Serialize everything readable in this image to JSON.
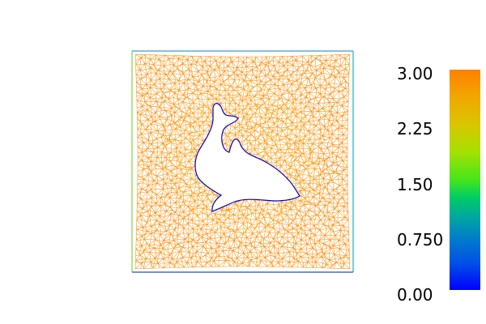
{
  "viewer": {
    "colors": {
      "mesh_edge": "#ff8a00",
      "mesh_edge_dense": "#ff9a10",
      "boundary_left": "#7fd43a",
      "boundary_right": "#1ab2c8",
      "boundary_bottom": "#1f4fd0",
      "hole_boundary": "#0000cc",
      "background": "#ffffff"
    },
    "hole_shape": "dolphin"
  },
  "colorbar": {
    "min": 0.0,
    "max": 3.0,
    "ticks": [
      "3.00",
      "2.25",
      "1.50",
      "0.750",
      "0.00"
    ],
    "colormap": "rainbow-blue-to-orange"
  }
}
